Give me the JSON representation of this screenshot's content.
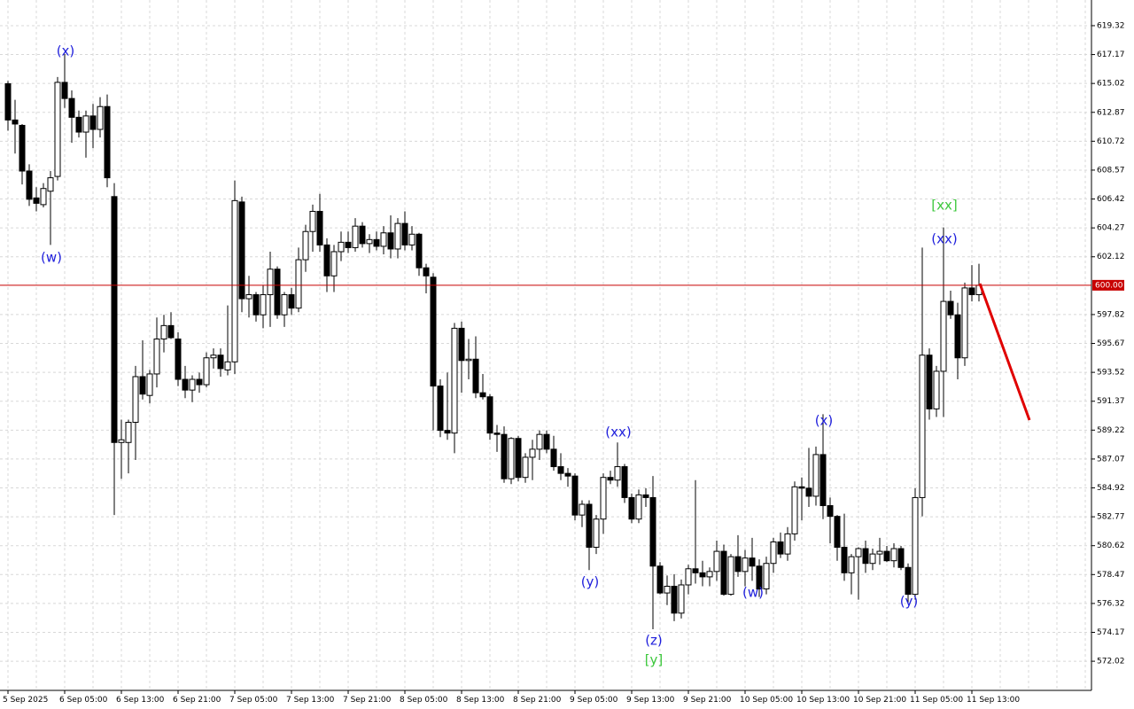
{
  "chart_data": {
    "type": "candlestick",
    "categories": [
      "5 Sep 2025",
      null,
      null,
      null,
      null,
      null,
      null,
      null,
      "6 Sep 05:00",
      null,
      null,
      null,
      null,
      null,
      null,
      null,
      "6 Sep 13:00",
      null,
      null,
      null,
      null,
      null,
      null,
      null,
      "6 Sep 21:00",
      null,
      null,
      null,
      null,
      null,
      null,
      null,
      "7 Sep 05:00",
      null,
      null,
      null,
      null,
      null,
      null,
      null,
      "7 Sep 13:00",
      null,
      null,
      null,
      null,
      null,
      null,
      null,
      "7 Sep 21:00",
      null,
      null,
      null,
      null,
      null,
      null,
      null,
      "8 Sep 05:00",
      null,
      null,
      null,
      null,
      null,
      null,
      null,
      "8 Sep 13:00",
      null,
      null,
      null,
      null,
      null,
      null,
      null,
      "8 Sep 21:00",
      null,
      null,
      null,
      null,
      null,
      null,
      null,
      "9 Sep 05:00",
      null,
      null,
      null,
      null,
      null,
      null,
      null,
      "9 Sep 13:00",
      null,
      null,
      null,
      null,
      null,
      null,
      null,
      "9 Sep 21:00",
      null,
      null,
      null,
      null,
      null,
      null,
      null,
      "10 Sep 05:00",
      null,
      null,
      null,
      null,
      null,
      null,
      null,
      "10 Sep 13:00",
      null,
      null,
      null,
      null,
      null,
      null,
      null,
      "10 Sep 21:00",
      null,
      null,
      null,
      null,
      null,
      null,
      null,
      "11 Sep 05:00",
      null,
      null,
      null,
      null,
      null,
      null,
      null,
      "11 Sep 13:00",
      null
    ],
    "open": [
      615.0,
      612.3,
      611.9,
      608.5,
      606.5,
      606.0,
      607.0,
      608.1,
      615.1,
      613.9,
      612.5,
      611.4,
      612.6,
      611.6,
      613.3,
      606.6,
      588.3,
      588.3,
      589.8,
      593.2,
      591.8,
      593.4,
      596.0,
      597.0,
      596.0,
      593.0,
      592.2,
      593.0,
      592.6,
      594.6,
      594.8,
      593.7,
      594.3,
      606.2,
      599.0,
      599.3,
      597.8,
      599.3,
      601.2,
      597.8,
      599.3,
      598.3,
      601.9,
      604.0,
      605.5,
      603.0,
      600.7,
      602.5,
      603.2,
      602.8,
      604.4,
      603.1,
      603.4,
      602.9,
      603.9,
      602.7,
      604.6,
      603.0,
      603.8,
      601.3,
      600.6,
      592.5,
      589.2,
      589.0,
      596.8,
      594.4,
      594.5,
      592.0,
      591.7,
      589.0,
      588.9,
      585.6,
      588.6,
      585.7,
      587.2,
      587.8,
      588.9,
      587.8,
      586.5,
      586.0,
      585.8,
      582.9,
      583.7,
      580.5,
      582.6,
      585.7,
      585.5,
      586.5,
      584.2,
      582.6,
      584.4,
      584.2,
      579.1,
      577.1,
      577.6,
      575.6,
      577.7,
      578.9,
      578.6,
      578.3,
      578.7,
      580.2,
      577.0,
      579.8,
      578.7,
      579.7,
      579.1,
      577.4,
      579.3,
      580.9,
      580.0,
      581.5,
      585.0,
      584.9,
      584.3,
      587.4,
      583.6,
      582.8,
      580.5,
      578.6,
      579.8,
      580.4,
      579.3,
      580.0,
      580.2,
      579.5,
      580.4,
      579.0,
      577.0,
      584.2,
      594.8,
      590.8,
      593.6,
      598.8,
      597.8,
      594.6,
      599.8,
      599.3
    ],
    "high": [
      615.2,
      613.8,
      612.0,
      609.0,
      607.3,
      607.6,
      608.5,
      615.5,
      617.2,
      614.5,
      613.0,
      613.0,
      613.5,
      614.0,
      614.2,
      607.6,
      590.0,
      590.0,
      594.0,
      595.9,
      593.7,
      597.6,
      597.8,
      598.0,
      596.5,
      594.0,
      593.3,
      593.5,
      595.0,
      595.3,
      595.3,
      598.5,
      607.8,
      606.6,
      600.7,
      599.5,
      600.0,
      602.5,
      601.4,
      599.5,
      599.8,
      602.8,
      604.5,
      606.0,
      606.8,
      603.5,
      603.0,
      604.0,
      604.0,
      605.0,
      604.7,
      603.8,
      604.0,
      604.4,
      605.2,
      605.0,
      605.5,
      604.4,
      603.9,
      601.6,
      600.9,
      593.0,
      593.5,
      597.2,
      597.3,
      596.0,
      596.2,
      593.4,
      591.9,
      589.6,
      589.5,
      588.7,
      588.8,
      587.5,
      588.5,
      589.2,
      589.2,
      588.8,
      587.5,
      586.4,
      586.0,
      584.0,
      584.0,
      582.9,
      586.0,
      586.2,
      588.3,
      586.7,
      584.5,
      584.8,
      584.9,
      585.8,
      579.4,
      578.4,
      578.5,
      578.1,
      579.2,
      585.5,
      579.5,
      579.0,
      581.0,
      580.7,
      580.0,
      581.4,
      580.3,
      581.2,
      579.6,
      579.8,
      581.2,
      581.6,
      582.0,
      585.4,
      585.7,
      587.9,
      588.0,
      590.4,
      584.2,
      582.9,
      583.0,
      580.0,
      580.5,
      581.0,
      580.4,
      581.2,
      580.6,
      580.8,
      580.6,
      579.3,
      584.9,
      602.8,
      595.3,
      594.0,
      604.3,
      599.6,
      598.7,
      600.2,
      601.5,
      601.6
    ],
    "low": [
      611.5,
      609.8,
      607.5,
      605.9,
      605.5,
      605.8,
      603.0,
      607.8,
      613.2,
      610.6,
      611.0,
      609.5,
      610.2,
      611.0,
      607.3,
      582.9,
      585.6,
      586.0,
      587.0,
      591.5,
      591.2,
      592.4,
      595.0,
      596.0,
      592.5,
      591.6,
      591.3,
      592.0,
      592.4,
      593.8,
      593.2,
      593.3,
      593.4,
      598.0,
      597.6,
      597.3,
      596.8,
      596.9,
      597.5,
      596.9,
      597.8,
      598.0,
      601.0,
      602.5,
      602.5,
      599.5,
      599.5,
      601.8,
      602.4,
      602.5,
      602.8,
      602.4,
      602.6,
      602.3,
      602.0,
      602.0,
      602.6,
      602.6,
      600.7,
      599.4,
      589.2,
      588.7,
      588.5,
      587.5,
      592.0,
      593.0,
      591.6,
      591.5,
      588.5,
      587.6,
      585.3,
      585.2,
      585.4,
      585.3,
      585.5,
      587.0,
      587.5,
      586.2,
      585.5,
      585.0,
      582.5,
      582.0,
      578.8,
      580.0,
      581.5,
      585.2,
      585.0,
      583.8,
      582.3,
      582.3,
      583.5,
      574.4,
      577.0,
      576.2,
      575.0,
      575.2,
      577.0,
      577.8,
      577.6,
      577.6,
      578.0,
      576.9,
      576.9,
      578.3,
      577.6,
      578.0,
      576.8,
      577.0,
      578.6,
      579.7,
      579.5,
      581.0,
      582.5,
      583.5,
      583.6,
      582.6,
      580.8,
      579.5,
      578.0,
      577.0,
      576.6,
      578.6,
      578.8,
      579.2,
      579.4,
      579.0,
      578.8,
      576.4,
      576.6,
      582.8,
      590.0,
      590.2,
      590.2,
      597.5,
      593.0,
      594.0,
      598.8,
      598.8
    ],
    "close": [
      612.3,
      612.0,
      608.5,
      606.4,
      606.1,
      607.2,
      608.0,
      615.1,
      613.9,
      612.5,
      611.4,
      612.6,
      611.6,
      613.3,
      608.0,
      588.3,
      588.5,
      589.8,
      593.2,
      591.9,
      593.4,
      596.0,
      597.0,
      596.1,
      593.0,
      592.2,
      593.0,
      592.6,
      594.6,
      594.8,
      593.8,
      594.3,
      606.3,
      599.0,
      599.3,
      597.8,
      599.3,
      601.2,
      597.8,
      599.3,
      598.3,
      601.9,
      604.0,
      605.5,
      603.0,
      600.7,
      602.5,
      603.2,
      602.8,
      604.4,
      603.1,
      603.4,
      602.9,
      603.9,
      602.7,
      604.6,
      603.0,
      603.8,
      601.3,
      600.7,
      592.5,
      589.2,
      589.0,
      596.8,
      594.4,
      594.5,
      592.0,
      591.7,
      589.0,
      588.9,
      585.6,
      588.6,
      585.7,
      587.2,
      587.8,
      588.9,
      587.8,
      586.5,
      586.0,
      585.8,
      582.9,
      583.7,
      580.5,
      582.6,
      585.7,
      585.5,
      586.5,
      584.2,
      582.6,
      584.4,
      584.2,
      579.1,
      577.1,
      577.6,
      575.6,
      577.7,
      578.9,
      578.6,
      578.3,
      578.7,
      580.2,
      577.0,
      579.8,
      578.7,
      579.7,
      579.1,
      577.4,
      579.3,
      580.9,
      580.0,
      581.5,
      585.0,
      584.9,
      584.3,
      587.4,
      583.6,
      582.8,
      580.5,
      578.6,
      579.8,
      580.4,
      579.3,
      580.0,
      580.2,
      579.5,
      580.4,
      579.0,
      577.0,
      584.2,
      594.8,
      590.8,
      593.6,
      598.8,
      597.8,
      594.6,
      599.8,
      599.3,
      600.0
    ],
    "up_color": "#ffffff",
    "down_color": "#000000",
    "ylim": [
      569.85,
      621.23
    ],
    "yticks": [
      619.32,
      617.17,
      615.02,
      612.87,
      610.72,
      608.57,
      606.42,
      604.27,
      602.12,
      597.82,
      595.67,
      593.52,
      591.37,
      589.22,
      587.07,
      584.92,
      582.77,
      580.62,
      578.47,
      576.32,
      574.17,
      572.02
    ],
    "grid": true,
    "price_line": {
      "value": 600,
      "label": "600.00",
      "color": "#c80000"
    },
    "annotations": [
      {
        "text": "(x)",
        "color": "#1f1fdc"
      },
      {
        "text": "(w)",
        "color": "#1f1fdc"
      },
      {
        "text": "(xx)",
        "color": "#1f1fdc"
      },
      {
        "text": "(y)",
        "color": "#1f1fdc"
      },
      {
        "text": "(z)",
        "color": "#1f1fdc"
      },
      {
        "text": "[y]",
        "color": "#3cc83c"
      },
      {
        "text": "(w)",
        "color": "#1f1fdc"
      },
      {
        "text": "(x)",
        "color": "#1f1fdc"
      },
      {
        "text": "(y)",
        "color": "#1f1fdc"
      },
      {
        "text": "[xx]",
        "color": "#3cc83c"
      },
      {
        "text": "(xx)",
        "color": "#1f1fdc"
      }
    ]
  }
}
